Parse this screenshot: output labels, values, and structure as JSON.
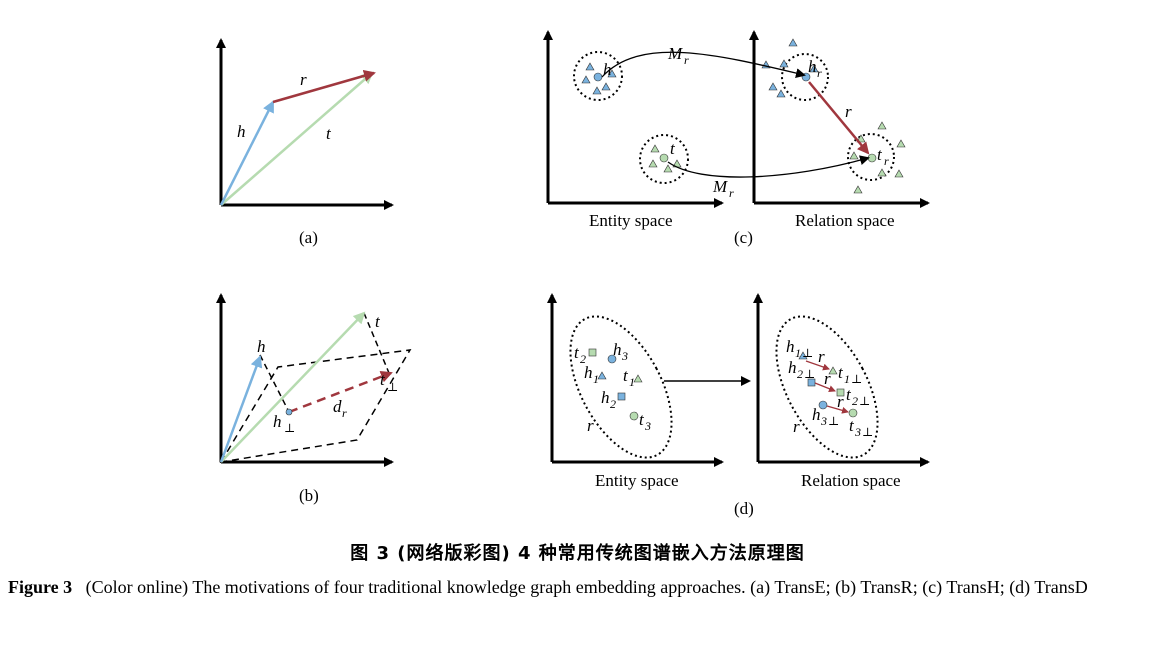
{
  "panels": {
    "a": {
      "label": "(a)",
      "h": "h",
      "r": "r",
      "t": "t"
    },
    "b": {
      "label": "(b)",
      "h": "h",
      "t": "t",
      "h_perp": "h",
      "t_perp": "t",
      "perp": "⊥",
      "d": "d",
      "d_sub": "r"
    },
    "c": {
      "label": "(c)",
      "h": "h",
      "t": "t",
      "hr": "h",
      "tr": "t",
      "r_sub": "r",
      "r": "r",
      "M": "M",
      "M_sub": "r",
      "entity_space": "Entity space",
      "relation_space": "Relation space"
    },
    "d": {
      "label": "(d)",
      "entity_space": "Entity space",
      "relation_space": "Relation space",
      "h": "h",
      "t": "t",
      "r": "r",
      "one": "1",
      "two": "2",
      "three": "3",
      "perp": "⊥"
    }
  },
  "caption": {
    "chinese": "图 3  (网络版彩图) 4 种常用传统图谱嵌入方法原理图",
    "figure_label": "Figure 3",
    "english": "(Color online) The motivations of four traditional knowledge graph embedding approaches.  (a) TransE; (b) TransR; (c) TransH; (d) TransD"
  },
  "colors": {
    "blue": "#7ab2de",
    "green": "#b6dbb0",
    "red": "#a0373e",
    "black": "#000000"
  }
}
